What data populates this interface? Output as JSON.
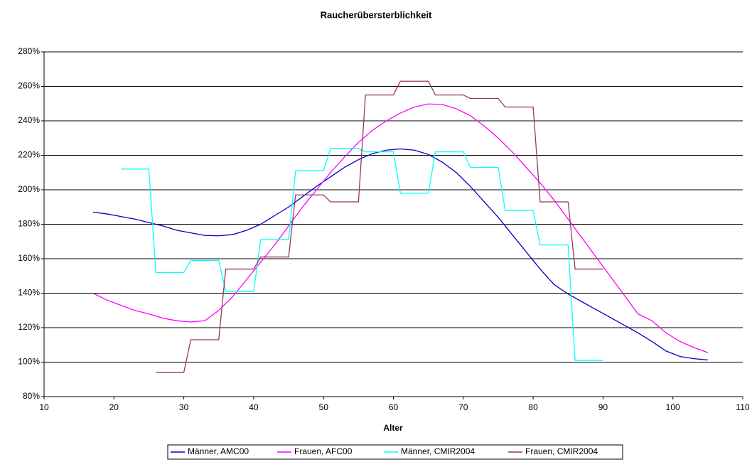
{
  "chart_data": {
    "type": "line",
    "title": "Raucherübersterblichkeit",
    "x_label": "Alter",
    "xlim": [
      10,
      110
    ],
    "xticks": [
      10,
      20,
      30,
      40,
      50,
      60,
      70,
      80,
      90,
      100,
      110
    ],
    "ylim": [
      80,
      280
    ],
    "yticks": [
      {
        "value": 80,
        "label": "80%"
      },
      {
        "value": 100,
        "label": "100%"
      },
      {
        "value": 120,
        "label": "120%"
      },
      {
        "value": 140,
        "label": "140%"
      },
      {
        "value": 160,
        "label": "160%"
      },
      {
        "value": 180,
        "label": "180%"
      },
      {
        "value": 200,
        "label": "200%"
      },
      {
        "value": 220,
        "label": "220%"
      },
      {
        "value": 240,
        "label": "240%"
      },
      {
        "value": 260,
        "label": "260%"
      },
      {
        "value": 280,
        "label": "280%"
      }
    ],
    "grid": true,
    "legend": "bottom",
    "series": [
      {
        "name": "Männer, AMC00",
        "color": "#0000cc",
        "x": [
          17,
          19,
          21,
          23,
          25,
          27,
          29,
          31,
          33,
          35,
          37,
          39,
          41,
          43,
          45,
          47,
          49,
          51,
          53,
          55,
          57,
          59,
          61,
          63,
          65,
          67,
          69,
          71,
          73,
          75,
          77,
          79,
          81,
          83,
          85,
          87,
          89,
          91,
          93,
          95,
          97,
          99,
          101,
          103,
          105
        ],
        "values": [
          187,
          186,
          184.5,
          183,
          181,
          179,
          176.5,
          175,
          173.5,
          173.3,
          174,
          176.5,
          180,
          185,
          190,
          196,
          202,
          207.5,
          213,
          217.5,
          221,
          223,
          223.7,
          223,
          220.5,
          216,
          210,
          202,
          193,
          184,
          174,
          164,
          154,
          145,
          139.5,
          135,
          130.5,
          126,
          121.5,
          117,
          112,
          106.5,
          103.3,
          102,
          101.3
        ]
      },
      {
        "name": "Frauen, AFC00",
        "color": "#ff00ff",
        "x": [
          17,
          19,
          21,
          23,
          25,
          27,
          29,
          31,
          33,
          35,
          37,
          39,
          41,
          43,
          45,
          47,
          49,
          51,
          53,
          55,
          57,
          59,
          61,
          63,
          65,
          67,
          69,
          71,
          73,
          75,
          77,
          79,
          81,
          83,
          85,
          87,
          89,
          91,
          93,
          95,
          97,
          99,
          101,
          103,
          105
        ],
        "values": [
          140,
          136,
          133,
          130,
          128,
          125.5,
          124,
          123.3,
          124,
          130,
          138,
          148,
          158,
          168,
          179,
          190,
          200,
          210,
          219,
          227.5,
          234.5,
          240,
          244.5,
          248,
          249.8,
          249.5,
          247,
          243,
          237,
          230,
          222,
          213,
          204,
          194,
          183,
          172,
          161,
          150,
          139,
          128,
          124,
          117,
          112,
          108.5,
          105.5
        ]
      },
      {
        "name": "Männer, CMIR2004",
        "color": "#00ffff",
        "x": [
          21,
          25,
          26,
          30,
          31,
          35,
          36,
          40,
          41,
          45,
          46,
          50,
          51,
          55,
          56,
          60,
          61,
          65,
          66,
          70,
          71,
          75,
          76,
          80,
          81,
          85,
          86,
          90
        ],
        "values": [
          212,
          212,
          152,
          152,
          159,
          159,
          141,
          141,
          171,
          171,
          211,
          211,
          224,
          224,
          222,
          222,
          198,
          198,
          222,
          222,
          213,
          213,
          188,
          188,
          168,
          168,
          101,
          101
        ]
      },
      {
        "name": "Frauen, CMIR2004",
        "color": "#993366",
        "x": [
          26,
          30,
          31,
          35,
          36,
          40,
          41,
          45,
          46,
          50,
          51,
          55,
          56,
          60,
          61,
          65,
          66,
          70,
          71,
          75,
          76,
          80,
          81,
          85,
          86,
          90
        ],
        "values": [
          94,
          94,
          113,
          113,
          154,
          154,
          161,
          161,
          197,
          197,
          193,
          193,
          255,
          255,
          263,
          263,
          255,
          255,
          253,
          253,
          248,
          248,
          193,
          193,
          154,
          154
        ]
      }
    ]
  }
}
